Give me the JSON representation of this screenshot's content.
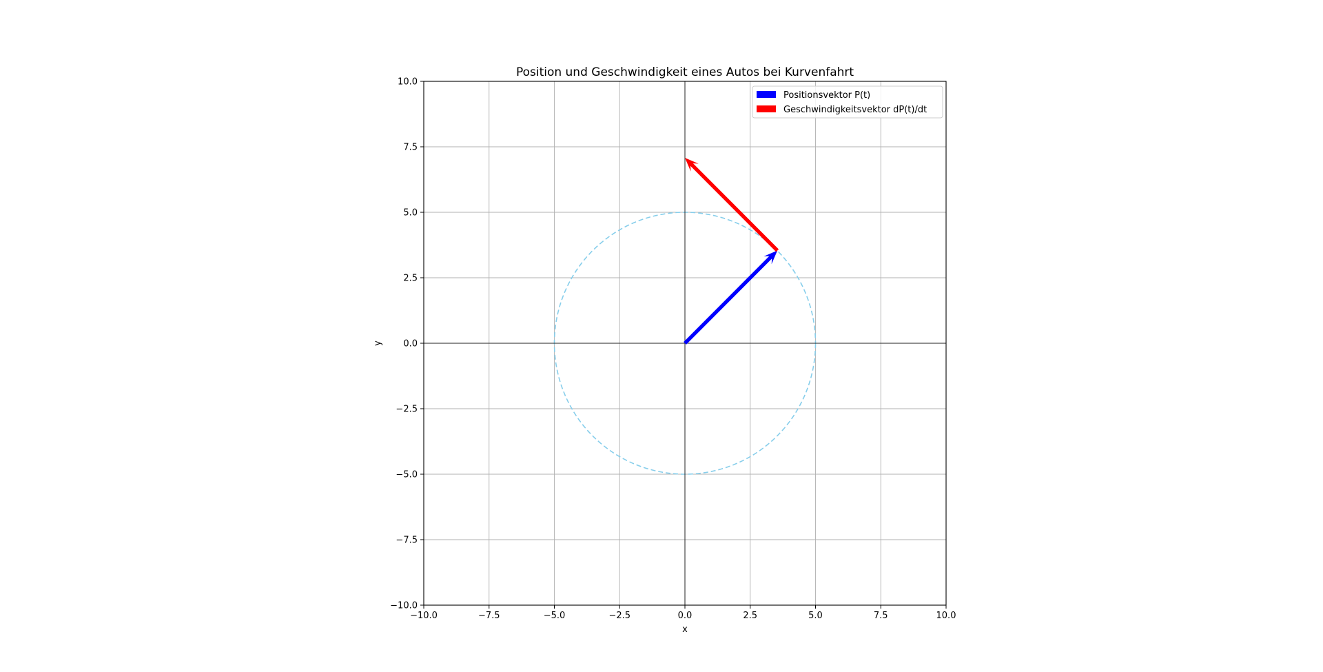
{
  "chart_data": {
    "type": "vector",
    "title": "Position und Geschwindigkeit eines Autos bei Kurvenfahrt",
    "xlabel": "x",
    "ylabel": "y",
    "xlim": [
      -10,
      10
    ],
    "ylim": [
      -10,
      10
    ],
    "x_ticks": [
      -10,
      -7.5,
      -5,
      -2.5,
      0,
      2.5,
      5,
      7.5,
      10
    ],
    "y_ticks": [
      -10,
      -7.5,
      -5,
      -2.5,
      0,
      2.5,
      5,
      7.5,
      10
    ],
    "x_tick_labels": [
      "−10.0",
      "−7.5",
      "−5.0",
      "−2.5",
      "0.0",
      "2.5",
      "5.0",
      "7.5",
      "10.0"
    ],
    "y_tick_labels": [
      "−10.0",
      "−7.5",
      "−5.0",
      "−2.5",
      "0.0",
      "2.5",
      "5.0",
      "7.5",
      "10.0"
    ],
    "grid": true,
    "legend_position": "top-right",
    "circle": {
      "center": [
        0,
        0
      ],
      "radius": 5,
      "style": "dashed",
      "color": "#87ceeb"
    },
    "vectors": [
      {
        "name": "Positionsvektor P(t)",
        "origin": [
          0,
          0
        ],
        "components": [
          3.54,
          3.54
        ],
        "color": "#0000ff"
      },
      {
        "name": "Geschwindigkeitsvektor dP(t)/dt",
        "origin": [
          3.54,
          3.54
        ],
        "components": [
          -3.54,
          3.54
        ],
        "color": "#ff0000"
      }
    ]
  }
}
